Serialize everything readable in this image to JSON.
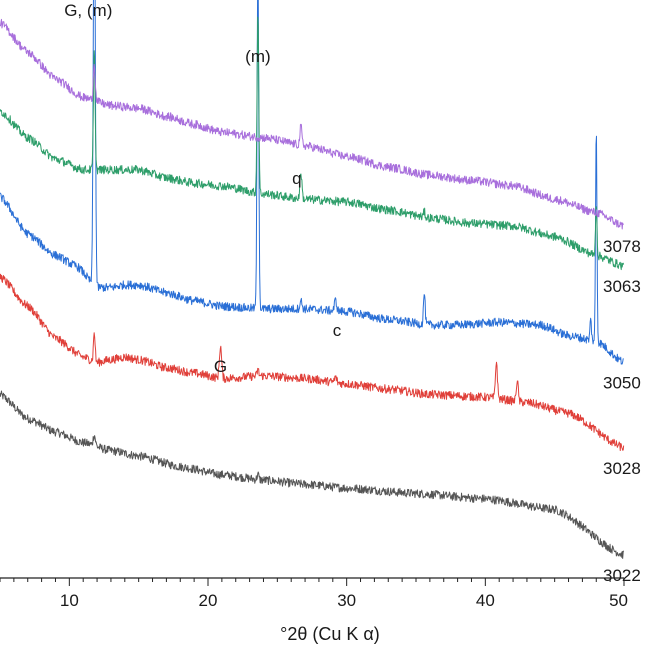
{
  "chart_data": {
    "type": "line",
    "title": "",
    "xlabel": "°2θ (Cu K α)",
    "ylabel": "",
    "xlim": [
      5,
      50
    ],
    "x_ticks": [
      10,
      20,
      30,
      40,
      50
    ],
    "colors": {
      "s3022": "#555555",
      "s3028": "#e0403a",
      "s3050": "#2a6fd6",
      "s3063": "#2e9e6a",
      "s3078": "#a86fdc",
      "axis": "#222222"
    },
    "series": [
      {
        "name": "3022",
        "color_key": "s3022",
        "points": [
          [
            5,
            0.3
          ],
          [
            7,
            0.255
          ],
          [
            9,
            0.23
          ],
          [
            11,
            0.21
          ],
          [
            13,
            0.195
          ],
          [
            15,
            0.185
          ],
          [
            18,
            0.165
          ],
          [
            21,
            0.15
          ],
          [
            24,
            0.14
          ],
          [
            27,
            0.132
          ],
          [
            30,
            0.125
          ],
          [
            35,
            0.115
          ],
          [
            40,
            0.105
          ],
          [
            45,
            0.085
          ],
          [
            50,
            0.0
          ]
        ],
        "peaks": [
          [
            11.8,
            0.02,
            0.08
          ],
          [
            23.6,
            0.01,
            0.06
          ]
        ]
      },
      {
        "name": "3028",
        "color_key": "s3028",
        "points": [
          [
            5,
            0.52
          ],
          [
            7,
            0.465
          ],
          [
            9,
            0.405
          ],
          [
            11,
            0.37
          ],
          [
            12,
            0.36
          ],
          [
            13,
            0.365
          ],
          [
            14,
            0.37
          ],
          [
            15,
            0.365
          ],
          [
            17,
            0.35
          ],
          [
            19,
            0.34
          ],
          [
            21,
            0.33
          ],
          [
            24,
            0.335
          ],
          [
            27,
            0.33
          ],
          [
            30,
            0.32
          ],
          [
            33,
            0.31
          ],
          [
            36,
            0.3
          ],
          [
            40,
            0.295
          ],
          [
            43,
            0.285
          ],
          [
            46,
            0.265
          ],
          [
            50,
            0.2
          ]
        ],
        "peaks": [
          [
            11.8,
            0.055,
            0.06
          ],
          [
            20.9,
            0.06,
            0.08
          ],
          [
            23.6,
            0.012,
            0.06
          ],
          [
            29.2,
            0.01,
            0.08
          ],
          [
            40.8,
            0.07,
            0.07
          ],
          [
            42.3,
            0.04,
            0.07
          ]
        ]
      },
      {
        "name": "3050",
        "color_key": "s3050",
        "points": [
          [
            5,
            0.67
          ],
          [
            7,
            0.6
          ],
          [
            9,
            0.56
          ],
          [
            10.5,
            0.54
          ],
          [
            12,
            0.5
          ],
          [
            13,
            0.5
          ],
          [
            14,
            0.505
          ],
          [
            15,
            0.505
          ],
          [
            17,
            0.49
          ],
          [
            19,
            0.475
          ],
          [
            21,
            0.465
          ],
          [
            24,
            0.46
          ],
          [
            27,
            0.46
          ],
          [
            30,
            0.455
          ],
          [
            33,
            0.44
          ],
          [
            36,
            0.43
          ],
          [
            38,
            0.43
          ],
          [
            41,
            0.435
          ],
          [
            44,
            0.43
          ],
          [
            46,
            0.41
          ],
          [
            48,
            0.4
          ],
          [
            50,
            0.36
          ]
        ],
        "peaks": [
          [
            11.8,
            0.8,
            0.07
          ],
          [
            23.6,
            0.65,
            0.06
          ],
          [
            26.7,
            0.015,
            0.08
          ],
          [
            29.2,
            0.02,
            0.08
          ],
          [
            35.6,
            0.06,
            0.06
          ],
          [
            48.0,
            0.4,
            0.05
          ],
          [
            47.6,
            0.04,
            0.05
          ]
        ]
      },
      {
        "name": "3063",
        "color_key": "s3063",
        "points": [
          [
            5,
            0.83
          ],
          [
            7,
            0.78
          ],
          [
            9,
            0.74
          ],
          [
            11,
            0.72
          ],
          [
            13,
            0.72
          ],
          [
            15,
            0.72
          ],
          [
            17,
            0.705
          ],
          [
            19,
            0.695
          ],
          [
            21,
            0.69
          ],
          [
            24,
            0.675
          ],
          [
            27,
            0.665
          ],
          [
            30,
            0.66
          ],
          [
            33,
            0.645
          ],
          [
            36,
            0.63
          ],
          [
            39,
            0.62
          ],
          [
            42,
            0.615
          ],
          [
            45,
            0.595
          ],
          [
            48,
            0.56
          ],
          [
            50,
            0.54
          ]
        ],
        "peaks": [
          [
            11.8,
            0.22,
            0.06
          ],
          [
            23.6,
            0.34,
            0.06
          ],
          [
            26.7,
            0.05,
            0.07
          ],
          [
            35.6,
            0.01,
            0.06
          ],
          [
            48.0,
            0.1,
            0.05
          ]
        ]
      },
      {
        "name": "3078",
        "color_key": "s3078",
        "points": [
          [
            5,
            0.995
          ],
          [
            7,
            0.94
          ],
          [
            9,
            0.89
          ],
          [
            11,
            0.855
          ],
          [
            13,
            0.84
          ],
          [
            15,
            0.835
          ],
          [
            17,
            0.82
          ],
          [
            19,
            0.805
          ],
          [
            21,
            0.79
          ],
          [
            24,
            0.78
          ],
          [
            27,
            0.765
          ],
          [
            30,
            0.745
          ],
          [
            33,
            0.725
          ],
          [
            36,
            0.71
          ],
          [
            39,
            0.7
          ],
          [
            42,
            0.69
          ],
          [
            45,
            0.665
          ],
          [
            48,
            0.64
          ],
          [
            50,
            0.615
          ]
        ],
        "peaks": [
          [
            11.8,
            0.07,
            0.07
          ],
          [
            26.7,
            0.035,
            0.07
          ]
        ]
      }
    ],
    "annotations": [
      {
        "text": "G, (m)",
        "x": 11.8
      },
      {
        "text": "(m)",
        "x": 23.6
      },
      {
        "text": "q",
        "x": 26.7
      },
      {
        "text": "c",
        "x": 29.3
      },
      {
        "text": "G",
        "x": 20.9
      }
    ]
  }
}
